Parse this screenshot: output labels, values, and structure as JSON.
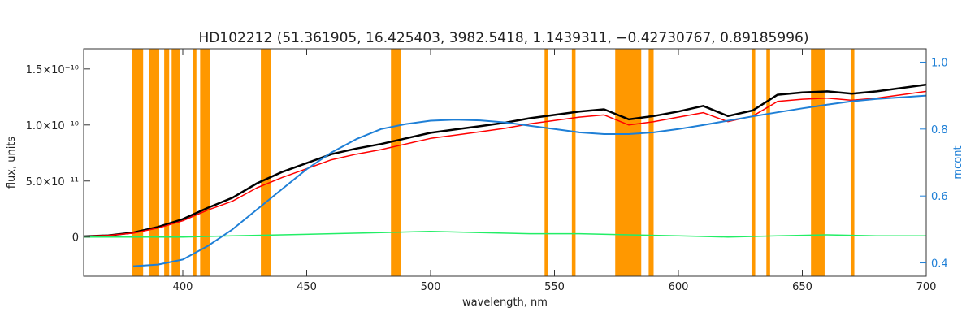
{
  "chart_data": {
    "type": "line",
    "title": "HD102212     (51.361905, 16.425403, 3982.5418, 1.1439311, −0.42730767, 0.89185996)",
    "xlabel": "wavelength, nm",
    "ylabel": "flux, units",
    "y2label": "mcont",
    "xlim": [
      360,
      700
    ],
    "ylim": [
      -3.5e-11,
      1.68e-10
    ],
    "y2lim": [
      0.36,
      1.04
    ],
    "x_ticks": [
      {
        "v": 400,
        "label": "400"
      },
      {
        "v": 450,
        "label": "450"
      },
      {
        "v": 500,
        "label": "500"
      },
      {
        "v": 550,
        "label": "550"
      },
      {
        "v": 600,
        "label": "600"
      },
      {
        "v": 650,
        "label": "650"
      },
      {
        "v": 700,
        "label": "700"
      }
    ],
    "y_ticks": [
      {
        "v": 0,
        "label": "0"
      },
      {
        "v": 5e-11,
        "label": "5.0×10⁻¹¹"
      },
      {
        "v": 1e-10,
        "label": "1.0×10⁻¹⁰"
      },
      {
        "v": 1.5e-10,
        "label": "1.5×10⁻¹⁰"
      }
    ],
    "y2_ticks": [
      {
        "v": 0.4,
        "label": "0.4"
      },
      {
        "v": 0.6,
        "label": "0.6"
      },
      {
        "v": 0.8,
        "label": "0.8"
      },
      {
        "v": 1.0,
        "label": "1.0"
      }
    ],
    "masked_regions": [
      [
        379.5,
        384
      ],
      [
        386.5,
        390.5
      ],
      [
        392.5,
        394.5
      ],
      [
        395.5,
        399
      ],
      [
        404,
        405.5
      ],
      [
        407,
        411
      ],
      [
        431.5,
        435.5
      ],
      [
        484,
        488
      ],
      [
        546,
        547.5
      ],
      [
        557,
        558.5
      ],
      [
        574.5,
        585
      ],
      [
        588,
        590
      ],
      [
        629.5,
        631
      ],
      [
        635.5,
        637
      ],
      [
        653.5,
        659
      ],
      [
        669.5,
        671
      ]
    ],
    "series": [
      {
        "role": "observed",
        "color": "#000000",
        "x": [
          360,
          370,
          380,
          390,
          400,
          410,
          420,
          430,
          440,
          450,
          460,
          470,
          480,
          490,
          500,
          510,
          520,
          530,
          540,
          550,
          560,
          570,
          580,
          590,
          600,
          610,
          620,
          630,
          640,
          650,
          660,
          670,
          680,
          690,
          700
        ],
        "y": [
          5e-13,
          1.5e-12,
          4e-12,
          9e-12,
          1.6e-11,
          2.6e-11,
          3.5e-11,
          4.8e-11,
          5.8e-11,
          6.6e-11,
          7.4e-11,
          7.9e-11,
          8.3e-11,
          8.8e-11,
          9.3e-11,
          9.6e-11,
          9.9e-11,
          1.02e-10,
          1.06e-10,
          1.09e-10,
          1.12e-10,
          1.14e-10,
          1.05e-10,
          1.08e-10,
          1.12e-10,
          1.17e-10,
          1.08e-10,
          1.13e-10,
          1.27e-10,
          1.29e-10,
          1.3e-10,
          1.28e-10,
          1.3e-10,
          1.33e-10,
          1.36e-10
        ]
      },
      {
        "role": "model",
        "color": "#ff0000",
        "x": [
          360,
          370,
          380,
          390,
          400,
          410,
          420,
          430,
          440,
          450,
          460,
          470,
          480,
          490,
          500,
          510,
          520,
          530,
          540,
          550,
          560,
          570,
          580,
          590,
          600,
          610,
          620,
          630,
          640,
          650,
          660,
          670,
          680,
          690,
          700
        ],
        "y": [
          5e-13,
          1.5e-12,
          3.5e-12,
          8e-12,
          1.45e-11,
          2.4e-11,
          3.2e-11,
          4.4e-11,
          5.3e-11,
          6.1e-11,
          6.9e-11,
          7.4e-11,
          7.8e-11,
          8.3e-11,
          8.8e-11,
          9.1e-11,
          9.4e-11,
          9.7e-11,
          1.01e-10,
          1.04e-10,
          1.07e-10,
          1.09e-10,
          1e-10,
          1.03e-10,
          1.07e-10,
          1.11e-10,
          1.03e-10,
          1.08e-10,
          1.21e-10,
          1.23e-10,
          1.24e-10,
          1.22e-10,
          1.24e-10,
          1.27e-10,
          1.3e-10
        ]
      },
      {
        "role": "residual",
        "color": "#22ee66",
        "x": [
          360,
          380,
          400,
          420,
          440,
          460,
          480,
          500,
          520,
          540,
          560,
          580,
          600,
          620,
          640,
          660,
          680,
          700
        ],
        "y": [
          0,
          0,
          0,
          1e-12,
          2e-12,
          3e-12,
          4e-12,
          5e-12,
          4e-12,
          3e-12,
          3e-12,
          2e-12,
          1e-12,
          0,
          1e-12,
          2e-12,
          1e-12,
          1e-12
        ]
      },
      {
        "role": "continuum",
        "axis": "right",
        "color": "#1e7fd6",
        "x": [
          380,
          390,
          400,
          410,
          420,
          430,
          440,
          450,
          460,
          470,
          480,
          490,
          500,
          510,
          520,
          530,
          540,
          550,
          560,
          570,
          580,
          590,
          600,
          610,
          620,
          630,
          640,
          650,
          660,
          670,
          680,
          690,
          700
        ],
        "y": [
          0.39,
          0.395,
          0.41,
          0.45,
          0.5,
          0.56,
          0.62,
          0.68,
          0.73,
          0.77,
          0.8,
          0.815,
          0.825,
          0.828,
          0.826,
          0.82,
          0.81,
          0.8,
          0.79,
          0.785,
          0.785,
          0.79,
          0.8,
          0.812,
          0.825,
          0.838,
          0.85,
          0.862,
          0.873,
          0.883,
          0.89,
          0.895,
          0.9
        ]
      }
    ],
    "colors": {
      "mask": "#ff9800",
      "highlight": "#ffee00",
      "axis": "#333333",
      "right_axis": "#1e7fd6"
    }
  }
}
